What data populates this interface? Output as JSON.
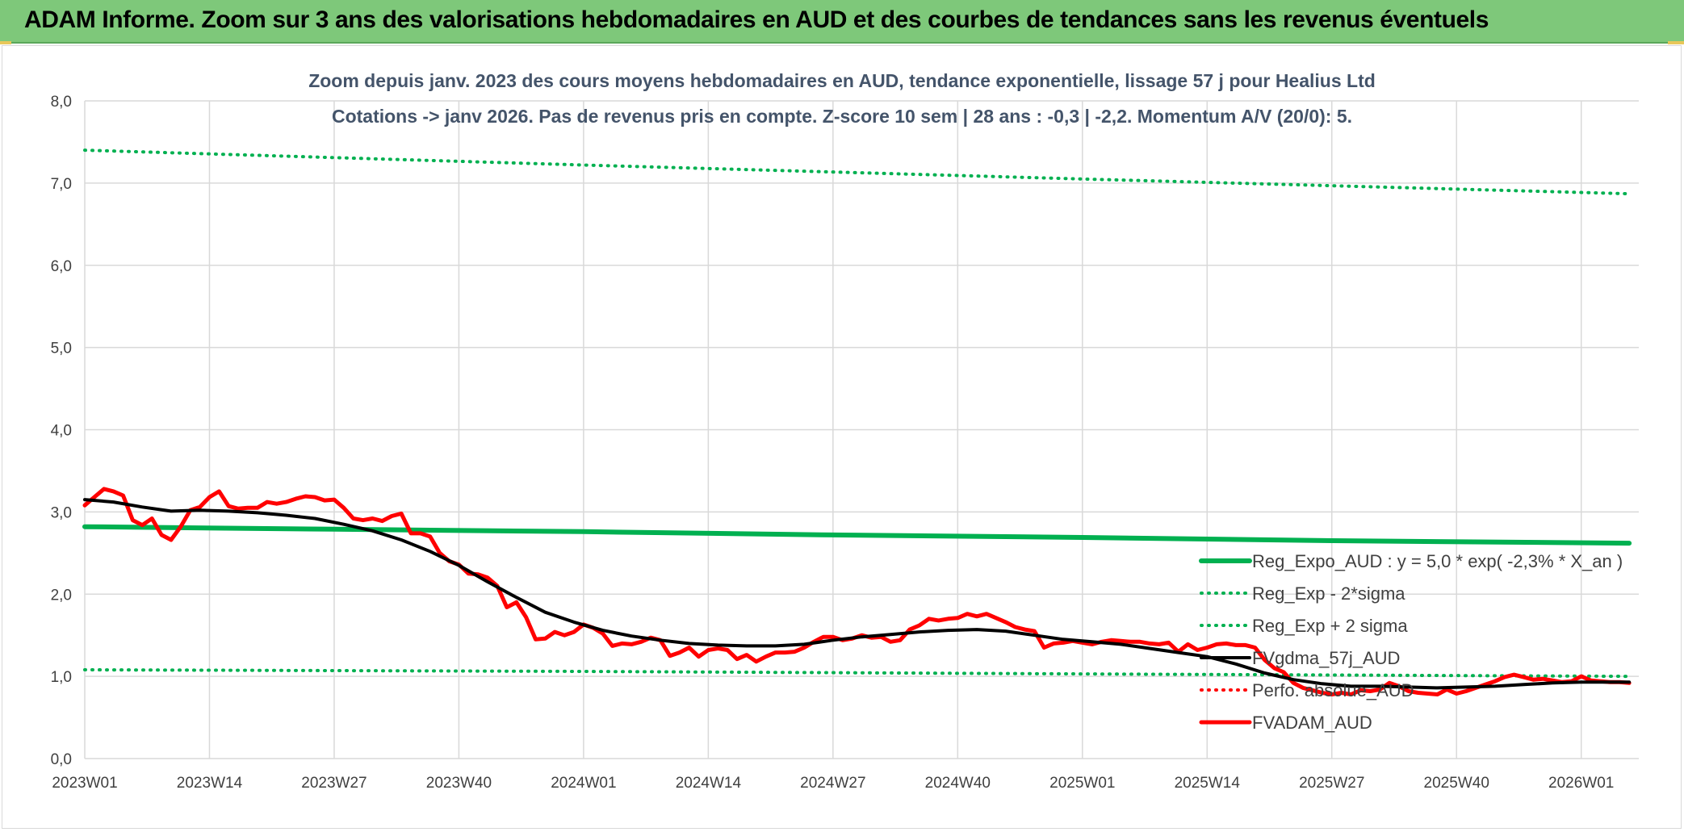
{
  "banner": {
    "title": "ADAM Informe. Zoom sur 3 ans des valorisations hebdomadaires en AUD et des courbes de tendances sans les revenus éventuels"
  },
  "colors": {
    "banner_bg": "#7ec87a",
    "reg_expo": "#00b050",
    "sigma_bands": "#00b050",
    "fvgdma": "#000000",
    "fvadam": "#ff0000",
    "perfo": "#ff0000",
    "grid": "#d9d9d9",
    "text": "#404040",
    "title_text": "#44546a"
  },
  "chart_data": {
    "type": "line",
    "title_line1": "Zoom depuis janv. 2023 des cours moyens hebdomadaires en AUD, tendance exponentielle, lissage 57 j pour Healius Ltd",
    "title_line2": "Cotations -> janv 2026. Pas de revenus pris en compte. Z-score 10 sem | 28 ans : -0,3 | -2,2. Momentum A/V (20/0): 5.",
    "xlabel": "",
    "ylabel": "",
    "ylim": [
      0,
      8
    ],
    "y_ticks": [
      "0,0",
      "1,0",
      "2,0",
      "3,0",
      "4,0",
      "5,0",
      "6,0",
      "7,0",
      "8,0"
    ],
    "x_range_weeks": [
      0,
      162
    ],
    "x_ticks": [
      {
        "label": "2023W01",
        "week": 0
      },
      {
        "label": "2023W14",
        "week": 13
      },
      {
        "label": "2023W27",
        "week": 26
      },
      {
        "label": "2023W40",
        "week": 39
      },
      {
        "label": "2024W01",
        "week": 52
      },
      {
        "label": "2024W14",
        "week": 65
      },
      {
        "label": "2024W27",
        "week": 78
      },
      {
        "label": "2024W40",
        "week": 91
      },
      {
        "label": "2025W01",
        "week": 104
      },
      {
        "label": "2025W14",
        "week": 117
      },
      {
        "label": "2025W27",
        "week": 130
      },
      {
        "label": "2025W40",
        "week": 143
      },
      {
        "label": "2026W01",
        "week": 156
      }
    ],
    "grid": true,
    "legend_position": "bottom-right",
    "series": [
      {
        "name": "Reg_Expo_AUD : y = 5,0 * exp( -2,3% *  X_an )",
        "style": "solid-thick",
        "color": "#00b050",
        "points": [
          [
            0,
            2.82
          ],
          [
            26,
            2.79
          ],
          [
            52,
            2.76
          ],
          [
            78,
            2.72
          ],
          [
            104,
            2.69
          ],
          [
            130,
            2.65
          ],
          [
            161,
            2.62
          ]
        ]
      },
      {
        "name": "Reg_Exp - 2*sigma",
        "style": "dotted",
        "color": "#00b050",
        "points": [
          [
            0,
            1.08
          ],
          [
            52,
            1.06
          ],
          [
            104,
            1.03
          ],
          [
            161,
            1.0
          ]
        ]
      },
      {
        "name": "Reg_Exp + 2 sigma",
        "style": "dotted",
        "color": "#00b050",
        "points": [
          [
            0,
            7.4
          ],
          [
            52,
            7.22
          ],
          [
            104,
            7.05
          ],
          [
            161,
            6.87
          ]
        ]
      },
      {
        "name": "FVgdma_57j_AUD",
        "style": "solid",
        "color": "#000000",
        "points": [
          [
            0,
            3.15
          ],
          [
            3,
            3.12
          ],
          [
            6,
            3.06
          ],
          [
            9,
            3.01
          ],
          [
            12,
            3.02
          ],
          [
            15,
            3.01
          ],
          [
            18,
            2.99
          ],
          [
            21,
            2.96
          ],
          [
            24,
            2.92
          ],
          [
            27,
            2.85
          ],
          [
            30,
            2.77
          ],
          [
            33,
            2.66
          ],
          [
            36,
            2.52
          ],
          [
            39,
            2.35
          ],
          [
            42,
            2.15
          ],
          [
            45,
            1.96
          ],
          [
            48,
            1.78
          ],
          [
            51,
            1.66
          ],
          [
            54,
            1.56
          ],
          [
            57,
            1.49
          ],
          [
            60,
            1.44
          ],
          [
            63,
            1.4
          ],
          [
            66,
            1.38
          ],
          [
            69,
            1.37
          ],
          [
            72,
            1.37
          ],
          [
            75,
            1.39
          ],
          [
            78,
            1.44
          ],
          [
            81,
            1.48
          ],
          [
            84,
            1.51
          ],
          [
            87,
            1.54
          ],
          [
            90,
            1.56
          ],
          [
            93,
            1.57
          ],
          [
            96,
            1.55
          ],
          [
            99,
            1.5
          ],
          [
            102,
            1.45
          ],
          [
            105,
            1.42
          ],
          [
            108,
            1.39
          ],
          [
            111,
            1.34
          ],
          [
            114,
            1.29
          ],
          [
            117,
            1.24
          ],
          [
            120,
            1.15
          ],
          [
            123,
            1.04
          ],
          [
            126,
            0.96
          ],
          [
            129,
            0.91
          ],
          [
            132,
            0.88
          ],
          [
            135,
            0.88
          ],
          [
            138,
            0.87
          ],
          [
            141,
            0.86
          ],
          [
            144,
            0.87
          ],
          [
            147,
            0.88
          ],
          [
            150,
            0.9
          ],
          [
            153,
            0.92
          ],
          [
            156,
            0.93
          ],
          [
            161,
            0.93
          ]
        ]
      },
      {
        "name": "Perfo. absolue_AUD",
        "style": "dotted",
        "color": "#ff0000",
        "points": []
      },
      {
        "name": "FVADAM_AUD",
        "style": "solid-thick",
        "color": "#ff0000",
        "points": [
          [
            0,
            3.08
          ],
          [
            1,
            3.18
          ],
          [
            2,
            3.28
          ],
          [
            3,
            3.25
          ],
          [
            4,
            3.2
          ],
          [
            5,
            2.9
          ],
          [
            6,
            2.84
          ],
          [
            7,
            2.92
          ],
          [
            8,
            2.72
          ],
          [
            9,
            2.66
          ],
          [
            10,
            2.82
          ],
          [
            11,
            3.02
          ],
          [
            12,
            3.06
          ],
          [
            13,
            3.18
          ],
          [
            14,
            3.25
          ],
          [
            15,
            3.07
          ],
          [
            16,
            3.04
          ],
          [
            17,
            3.05
          ],
          [
            18,
            3.05
          ],
          [
            19,
            3.12
          ],
          [
            20,
            3.1
          ],
          [
            21,
            3.12
          ],
          [
            22,
            3.16
          ],
          [
            23,
            3.19
          ],
          [
            24,
            3.18
          ],
          [
            25,
            3.14
          ],
          [
            26,
            3.15
          ],
          [
            27,
            3.05
          ],
          [
            28,
            2.92
          ],
          [
            29,
            2.9
          ],
          [
            30,
            2.92
          ],
          [
            31,
            2.89
          ],
          [
            32,
            2.95
          ],
          [
            33,
            2.98
          ],
          [
            34,
            2.74
          ],
          [
            35,
            2.74
          ],
          [
            36,
            2.7
          ],
          [
            37,
            2.5
          ],
          [
            38,
            2.4
          ],
          [
            39,
            2.36
          ],
          [
            40,
            2.25
          ],
          [
            41,
            2.24
          ],
          [
            42,
            2.2
          ],
          [
            43,
            2.1
          ],
          [
            44,
            1.84
          ],
          [
            45,
            1.9
          ],
          [
            46,
            1.72
          ],
          [
            47,
            1.45
          ],
          [
            48,
            1.46
          ],
          [
            49,
            1.54
          ],
          [
            50,
            1.5
          ],
          [
            51,
            1.54
          ],
          [
            52,
            1.63
          ],
          [
            53,
            1.59
          ],
          [
            54,
            1.52
          ],
          [
            55,
            1.37
          ],
          [
            56,
            1.4
          ],
          [
            57,
            1.39
          ],
          [
            58,
            1.42
          ],
          [
            59,
            1.47
          ],
          [
            60,
            1.44
          ],
          [
            61,
            1.25
          ],
          [
            62,
            1.29
          ],
          [
            63,
            1.35
          ],
          [
            64,
            1.24
          ],
          [
            65,
            1.32
          ],
          [
            66,
            1.34
          ],
          [
            67,
            1.32
          ],
          [
            68,
            1.21
          ],
          [
            69,
            1.26
          ],
          [
            70,
            1.18
          ],
          [
            71,
            1.24
          ],
          [
            72,
            1.29
          ],
          [
            73,
            1.29
          ],
          [
            74,
            1.3
          ],
          [
            75,
            1.35
          ],
          [
            76,
            1.42
          ],
          [
            77,
            1.48
          ],
          [
            78,
            1.48
          ],
          [
            79,
            1.44
          ],
          [
            80,
            1.46
          ],
          [
            81,
            1.5
          ],
          [
            82,
            1.47
          ],
          [
            83,
            1.48
          ],
          [
            84,
            1.42
          ],
          [
            85,
            1.44
          ],
          [
            86,
            1.57
          ],
          [
            87,
            1.62
          ],
          [
            88,
            1.7
          ],
          [
            89,
            1.68
          ],
          [
            90,
            1.7
          ],
          [
            91,
            1.71
          ],
          [
            92,
            1.76
          ],
          [
            93,
            1.73
          ],
          [
            94,
            1.76
          ],
          [
            95,
            1.71
          ],
          [
            96,
            1.66
          ],
          [
            97,
            1.6
          ],
          [
            98,
            1.57
          ],
          [
            99,
            1.55
          ],
          [
            100,
            1.35
          ],
          [
            101,
            1.4
          ],
          [
            102,
            1.41
          ],
          [
            103,
            1.43
          ],
          [
            104,
            1.41
          ],
          [
            105,
            1.39
          ],
          [
            106,
            1.42
          ],
          [
            107,
            1.44
          ],
          [
            108,
            1.43
          ],
          [
            109,
            1.42
          ],
          [
            110,
            1.42
          ],
          [
            111,
            1.4
          ],
          [
            112,
            1.39
          ],
          [
            113,
            1.41
          ],
          [
            114,
            1.3
          ],
          [
            115,
            1.39
          ],
          [
            116,
            1.32
          ],
          [
            117,
            1.35
          ],
          [
            118,
            1.39
          ],
          [
            119,
            1.4
          ],
          [
            120,
            1.38
          ],
          [
            121,
            1.38
          ],
          [
            122,
            1.35
          ],
          [
            123,
            1.2
          ],
          [
            124,
            1.1
          ],
          [
            125,
            1.05
          ],
          [
            126,
            0.92
          ],
          [
            127,
            0.86
          ],
          [
            128,
            0.83
          ],
          [
            129,
            0.8
          ],
          [
            130,
            0.78
          ],
          [
            131,
            0.8
          ],
          [
            132,
            0.78
          ],
          [
            133,
            0.83
          ],
          [
            134,
            0.82
          ],
          [
            135,
            0.84
          ],
          [
            136,
            0.92
          ],
          [
            137,
            0.88
          ],
          [
            138,
            0.82
          ],
          [
            139,
            0.8
          ],
          [
            140,
            0.79
          ],
          [
            141,
            0.78
          ],
          [
            142,
            0.84
          ],
          [
            143,
            0.79
          ],
          [
            144,
            0.82
          ],
          [
            145,
            0.86
          ],
          [
            146,
            0.9
          ],
          [
            147,
            0.94
          ],
          [
            148,
            0.99
          ],
          [
            149,
            1.02
          ],
          [
            150,
            0.99
          ],
          [
            151,
            0.96
          ],
          [
            152,
            0.97
          ],
          [
            153,
            0.95
          ],
          [
            154,
            0.93
          ],
          [
            155,
            0.94
          ],
          [
            156,
            1.0
          ],
          [
            157,
            0.95
          ],
          [
            158,
            0.94
          ],
          [
            159,
            0.93
          ],
          [
            160,
            0.93
          ],
          [
            161,
            0.92
          ]
        ]
      }
    ]
  }
}
